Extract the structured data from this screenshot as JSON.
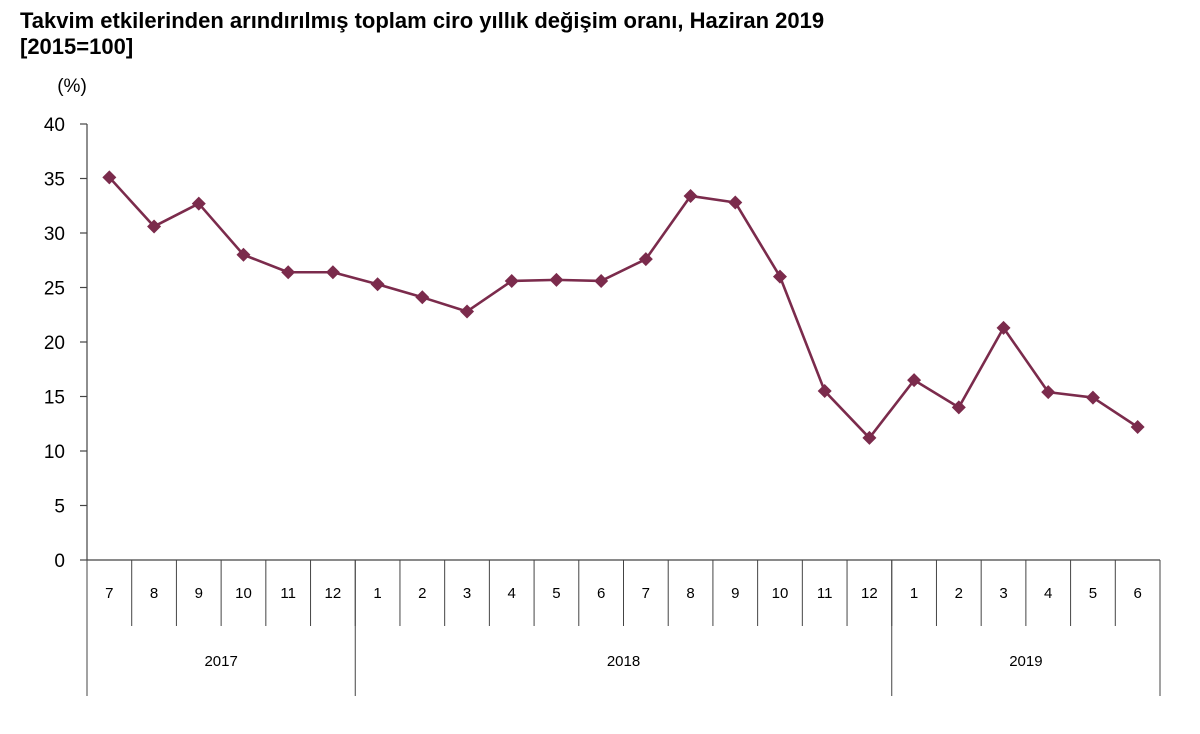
{
  "chart_data": {
    "type": "line",
    "title": "Takvim etkilerinden arındırılmış toplam ciro yıllık değişim oranı, Haziran 2019",
    "subtitle": "[2015=100]",
    "ylabel": "(%)",
    "ylim": [
      0,
      40
    ],
    "yticks": [
      "0",
      "5",
      "10",
      "15",
      "20",
      "25",
      "30",
      "35",
      "40"
    ],
    "months": [
      "7",
      "8",
      "9",
      "10",
      "11",
      "12",
      "1",
      "2",
      "3",
      "4",
      "5",
      "6",
      "7",
      "8",
      "9",
      "10",
      "11",
      "12",
      "1",
      "2",
      "3",
      "4",
      "5",
      "6"
    ],
    "years": [
      {
        "label": "2017",
        "count": 6
      },
      {
        "label": "2018",
        "count": 12
      },
      {
        "label": "2019",
        "count": 6
      }
    ],
    "series": [
      {
        "color": "#7b2b4c",
        "values": [
          35.1,
          30.6,
          32.7,
          28.0,
          26.4,
          26.4,
          25.3,
          24.1,
          22.8,
          25.6,
          25.7,
          25.6,
          27.6,
          33.4,
          32.8,
          26.0,
          15.5,
          11.2,
          16.5,
          14.0,
          21.3,
          15.4,
          14.9,
          12.2
        ]
      }
    ],
    "grid": false,
    "legend": "none"
  }
}
